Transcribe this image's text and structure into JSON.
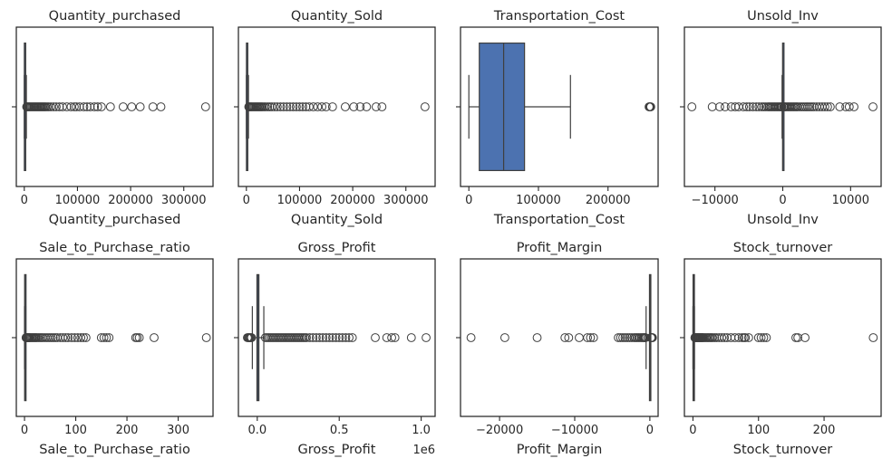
{
  "chart_data": [
    {
      "type": "box",
      "title": "Quantity_purchased",
      "xlabel": "Quantity_purchased",
      "xlim": [
        -15000,
        355000
      ],
      "xticks": [
        0,
        100000,
        200000,
        300000
      ],
      "xtick_labels": [
        "0",
        "100000",
        "200000",
        "300000"
      ],
      "box": {
        "whislo": 0,
        "q1": 100,
        "med": 500,
        "q3": 1500,
        "whishi": 3900
      },
      "outliers": [
        4500,
        5500,
        7000,
        8500,
        10000,
        12000,
        14000,
        16000,
        18000,
        20000,
        22000,
        24000,
        26000,
        28000,
        30000,
        32000,
        34000,
        36000,
        38000,
        40000,
        43000,
        46000,
        50000,
        55000,
        60000,
        66000,
        72000,
        80000,
        88000,
        94000,
        98000,
        104000,
        112000,
        118000,
        124000,
        132000,
        138000,
        145000,
        162000,
        186000,
        202000,
        218000,
        242000,
        257000,
        341000
      ]
    },
    {
      "type": "box",
      "title": "Quantity_Sold",
      "xlabel": "Quantity_Sold",
      "xlim": [
        -15000,
        355000
      ],
      "xticks": [
        0,
        100000,
        200000,
        300000
      ],
      "xtick_labels": [
        "0",
        "100000",
        "200000",
        "300000"
      ],
      "box": {
        "whislo": 0,
        "q1": 100,
        "med": 500,
        "q3": 1500,
        "whishi": 3900
      },
      "outliers": [
        4500,
        5500,
        7000,
        8500,
        10000,
        12000,
        14000,
        16000,
        18000,
        20000,
        22000,
        24000,
        26000,
        28000,
        30000,
        33000,
        36000,
        40000,
        44000,
        48000,
        53000,
        58000,
        64000,
        70000,
        76000,
        82000,
        88000,
        94000,
        100000,
        106000,
        112000,
        118000,
        126000,
        134000,
        142000,
        150000,
        162000,
        186000,
        202000,
        214000,
        226000,
        244000,
        255000,
        336000
      ]
    },
    {
      "type": "box",
      "title": "Transportation_Cost",
      "xlabel": "Transportation_Cost",
      "xlim": [
        -12000,
        272000
      ],
      "xticks": [
        0,
        100000,
        200000
      ],
      "xtick_labels": [
        "0",
        "100000",
        "200000"
      ],
      "box": {
        "whislo": 0,
        "q1": 15000,
        "med": 50000,
        "q3": 80000,
        "whishi": 146000
      },
      "outliers": [
        259000,
        259600,
        260200,
        260800,
        261400
      ]
    },
    {
      "type": "box",
      "title": "Unsold_Inv",
      "xlabel": "Unsold_Inv",
      "xlim": [
        -14500,
        14500
      ],
      "xticks": [
        -10000,
        0,
        10000
      ],
      "xtick_labels": [
        "−10000",
        "0",
        "10000"
      ],
      "box": {
        "whislo": -100,
        "q1": -20,
        "med": 0,
        "q3": 20,
        "whishi": 100
      },
      "outliers": [
        -13400,
        -10400,
        -9300,
        -8500,
        -7600,
        -7000,
        -6500,
        -5800,
        -5300,
        -4900,
        -4400,
        -3900,
        -3500,
        -3100,
        -2800,
        -2500,
        -2200,
        -2000,
        -1800,
        -1600,
        -1400,
        -1200,
        -1000,
        -800,
        -600,
        -400,
        -250,
        -150,
        150,
        250,
        400,
        600,
        800,
        1000,
        1200,
        1400,
        1600,
        1800,
        2000,
        2200,
        2500,
        2800,
        3100,
        3400,
        3700,
        4000,
        4300,
        4600,
        5000,
        5400,
        5800,
        6200,
        6600,
        7000,
        8400,
        9300,
        9800,
        10500,
        13300
      ]
    },
    {
      "type": "box",
      "title": "Sale_to_Purchase_ratio",
      "xlabel": "Sale_to_Purchase_ratio",
      "xlim": [
        -16,
        368
      ],
      "xticks": [
        0,
        100,
        200,
        300
      ],
      "xtick_labels": [
        "0",
        "100",
        "200",
        "300"
      ],
      "box": {
        "whislo": 0,
        "q1": 0.3,
        "med": 0.7,
        "q3": 1.2,
        "whishi": 2.5
      },
      "outliers": [
        3,
        4,
        5,
        6,
        7,
        8,
        9,
        10,
        12,
        14,
        16,
        18,
        20,
        22,
        24,
        27,
        30,
        33,
        36,
        40,
        44,
        48,
        52,
        56,
        60,
        64,
        70,
        75,
        80,
        85,
        92,
        98,
        104,
        110,
        115,
        120,
        150,
        155,
        160,
        165,
        217,
        220,
        224,
        253,
        355
      ]
    },
    {
      "type": "box",
      "title": "Gross_Profit",
      "xlabel": "Gross_Profit",
      "axis_offset_label": "1e6",
      "xlim": [
        -115000,
        1085000
      ],
      "xticks": [
        0,
        500000,
        1000000
      ],
      "xtick_labels": [
        "0.0",
        "0.5",
        "1.0"
      ],
      "box": {
        "whislo": -30000,
        "q1": -2000,
        "med": 2000,
        "q3": 10000,
        "whishi": 40000
      },
      "outliers": [
        -60000,
        -55000,
        -50000,
        -45000,
        -40000,
        -35000,
        50000,
        60000,
        70000,
        80000,
        90000,
        100000,
        110000,
        120000,
        130000,
        140000,
        150000,
        160000,
        170000,
        180000,
        190000,
        200000,
        210000,
        220000,
        230000,
        240000,
        250000,
        260000,
        270000,
        280000,
        290000,
        300000,
        320000,
        340000,
        360000,
        380000,
        400000,
        420000,
        440000,
        460000,
        480000,
        500000,
        520000,
        540000,
        560000,
        580000,
        720000,
        790000,
        820000,
        840000,
        940000,
        1030000
      ]
    },
    {
      "type": "box",
      "title": "Profit_Margin",
      "xlabel": "Profit_Margin",
      "xlim": [
        -25200,
        1100
      ],
      "xticks": [
        -20000,
        -10000,
        0
      ],
      "xtick_labels": [
        "−20000",
        "−10000",
        "0"
      ],
      "box": {
        "whislo": -500,
        "q1": -50,
        "med": 20,
        "q3": 50,
        "whishi": 100
      },
      "outliers": [
        -23800,
        -19300,
        -15000,
        -11300,
        -10800,
        -9400,
        -8300,
        -7900,
        -7500,
        -4200,
        -3900,
        -3600,
        -3300,
        -3000,
        -2700,
        -2400,
        -2100,
        -1900,
        -1700,
        -1500,
        -1300,
        -1100,
        -950,
        -800,
        -700,
        -600,
        150,
        200,
        250,
        300,
        350
      ]
    },
    {
      "type": "box",
      "title": "Stock_turnover",
      "xlabel": "Stock_turnover",
      "xlim": [
        -13,
        287
      ],
      "xticks": [
        0,
        100,
        200
      ],
      "xtick_labels": [
        "0",
        "100",
        "200"
      ],
      "box": {
        "whislo": 0,
        "q1": 0.2,
        "med": 0.6,
        "q3": 1.1,
        "whishi": 2.3
      },
      "outliers": [
        3,
        4,
        5,
        6,
        7,
        8,
        9,
        10,
        11,
        12,
        13,
        14,
        15,
        16,
        18,
        20,
        22,
        24,
        26,
        28,
        30,
        33,
        36,
        40,
        44,
        48,
        52,
        58,
        64,
        70,
        75,
        78,
        80,
        85,
        100,
        104,
        108,
        112,
        157,
        160,
        171,
        275
      ]
    }
  ]
}
